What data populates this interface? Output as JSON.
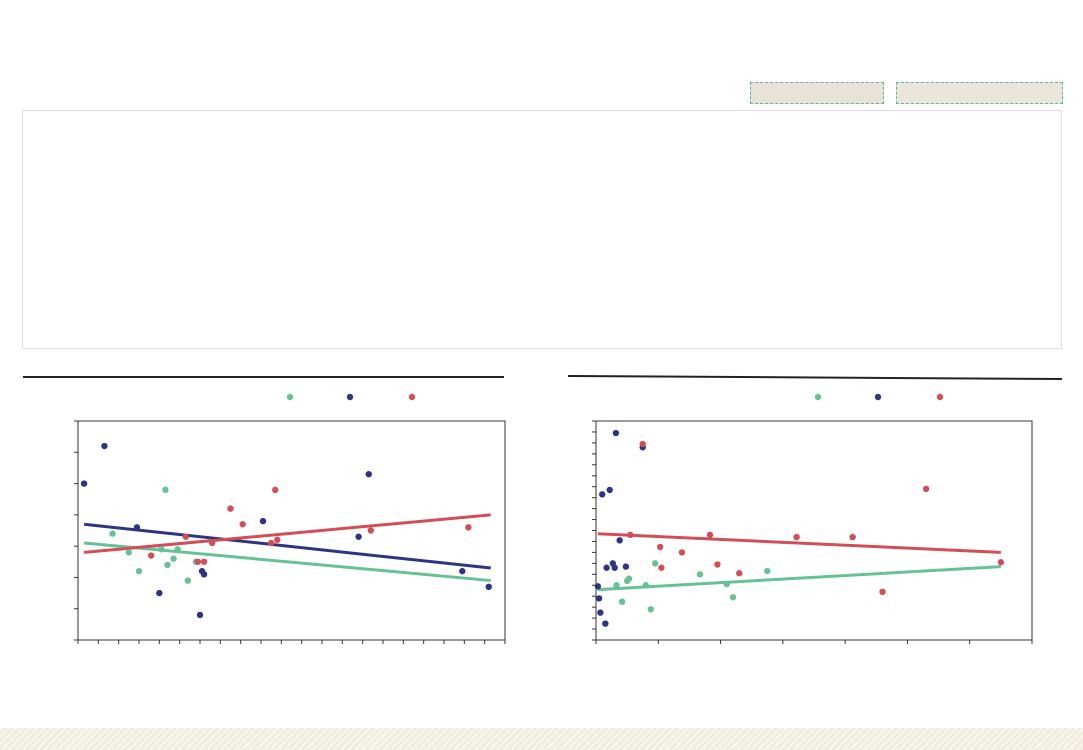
{
  "colors": {
    "green": "#66c295",
    "blue": "#2d3484",
    "red": "#d24e57",
    "axis": "#333333",
    "panel_border": "#e1ddd4"
  },
  "chart_data": [
    {
      "type": "scatter",
      "title": "",
      "xlabel": "",
      "ylabel": "",
      "legend_position": "top-right",
      "grid": false,
      "xlim": [
        0,
        21
      ],
      "ylim": [
        0,
        7
      ],
      "x_minor_ticks": 21,
      "y_minor_ticks": 7,
      "series": [
        {
          "color": "green",
          "points": [
            [
              1.7,
              3.4
            ],
            [
              2.5,
              2.8
            ],
            [
              3.0,
              2.2
            ],
            [
              4.1,
              2.9
            ],
            [
              4.3,
              4.8
            ],
            [
              4.4,
              2.4
            ],
            [
              4.7,
              2.6
            ],
            [
              4.9,
              2.9
            ],
            [
              5.4,
              1.9
            ],
            [
              5.8,
              2.5
            ]
          ],
          "trend": [
            [
              0.3,
              3.1
            ],
            [
              20.3,
              1.9
            ]
          ]
        },
        {
          "color": "blue",
          "points": [
            [
              0.3,
              5.0
            ],
            [
              1.3,
              6.2
            ],
            [
              2.9,
              3.6
            ],
            [
              4.0,
              1.5
            ],
            [
              6.0,
              0.8
            ],
            [
              6.1,
              2.2
            ],
            [
              6.2,
              2.1
            ],
            [
              9.1,
              3.8
            ],
            [
              13.8,
              3.3
            ],
            [
              14.3,
              5.3
            ],
            [
              18.9,
              2.2
            ],
            [
              20.2,
              1.7
            ]
          ],
          "trend": [
            [
              0.3,
              3.7
            ],
            [
              20.3,
              2.3
            ]
          ]
        },
        {
          "color": "red",
          "points": [
            [
              3.6,
              2.7
            ],
            [
              5.3,
              3.3
            ],
            [
              5.9,
              2.5
            ],
            [
              6.2,
              2.5
            ],
            [
              6.6,
              3.1
            ],
            [
              7.5,
              4.2
            ],
            [
              8.1,
              3.7
            ],
            [
              9.5,
              3.1
            ],
            [
              9.7,
              4.8
            ],
            [
              9.8,
              3.2
            ],
            [
              14.4,
              3.5
            ],
            [
              19.2,
              3.6
            ]
          ],
          "trend": [
            [
              0.3,
              2.8
            ],
            [
              20.3,
              4.0
            ]
          ]
        }
      ]
    },
    {
      "type": "scatter",
      "title": "",
      "xlabel": "",
      "ylabel": "",
      "legend_position": "top-right",
      "grid": false,
      "xlim": [
        0,
        7
      ],
      "ylim": [
        0,
        20
      ],
      "x_minor_ticks": 7,
      "y_minor_ticks": 20,
      "series": [
        {
          "color": "green",
          "points": [
            [
              0.33,
              5.0
            ],
            [
              0.42,
              3.5
            ],
            [
              0.5,
              5.4
            ],
            [
              0.53,
              5.6
            ],
            [
              0.8,
              5.0
            ],
            [
              0.88,
              2.8
            ],
            [
              0.95,
              7.0
            ],
            [
              1.67,
              6.0
            ],
            [
              2.1,
              5.1
            ],
            [
              2.2,
              3.9
            ],
            [
              2.75,
              6.3
            ]
          ],
          "trend": [
            [
              0.03,
              4.6
            ],
            [
              6.5,
              6.7
            ]
          ]
        },
        {
          "color": "blue",
          "points": [
            [
              0.03,
              4.9
            ],
            [
              0.05,
              3.8
            ],
            [
              0.07,
              2.5
            ],
            [
              0.1,
              13.3
            ],
            [
              0.15,
              1.5
            ],
            [
              0.17,
              6.6
            ],
            [
              0.22,
              13.7
            ],
            [
              0.27,
              7.0
            ],
            [
              0.3,
              6.6
            ],
            [
              0.32,
              18.9
            ],
            [
              0.38,
              9.1
            ],
            [
              0.48,
              6.7
            ],
            [
              0.75,
              17.6
            ]
          ],
          "trend": []
        },
        {
          "color": "red",
          "points": [
            [
              0.55,
              9.6
            ],
            [
              0.75,
              17.9
            ],
            [
              1.03,
              8.5
            ],
            [
              1.05,
              6.6
            ],
            [
              1.38,
              8.0
            ],
            [
              1.83,
              9.6
            ],
            [
              1.95,
              6.9
            ],
            [
              2.3,
              6.1
            ],
            [
              3.22,
              9.4
            ],
            [
              4.12,
              9.4
            ],
            [
              4.6,
              4.4
            ],
            [
              5.3,
              13.8
            ],
            [
              6.5,
              7.1
            ]
          ],
          "trend": [
            [
              0.03,
              9.7
            ],
            [
              6.5,
              8.0
            ]
          ]
        }
      ]
    }
  ]
}
